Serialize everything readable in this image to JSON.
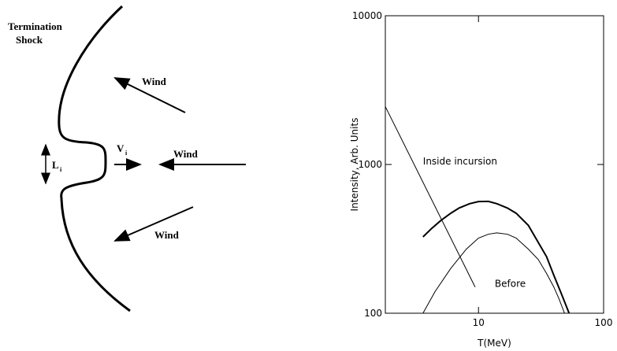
{
  "diagram": {
    "labels": {
      "shock_line1": "Termination",
      "shock_line2": "Shock",
      "wind_top": "Wind",
      "wind_middle": "Wind",
      "wind_bottom": "Wind",
      "v": "V",
      "v_sub": "i",
      "l": "L",
      "l_sub": "i"
    }
  },
  "chart_data": {
    "type": "line",
    "xlabel": "T(MeV)",
    "ylabel": "Intensity, Arb. Units",
    "xlim": [
      1.8,
      100
    ],
    "ylim": [
      100,
      10000
    ],
    "xticks": [
      10,
      100
    ],
    "yticks": [
      100,
      1000,
      10000
    ],
    "xscale": "log",
    "yscale": "log",
    "annotations": [
      {
        "text": "Inside incursion",
        "x": 3.6,
        "y": 1000
      },
      {
        "text": "Before",
        "x": 13.5,
        "y": 150
      }
    ],
    "series": [
      {
        "color": "#000000",
        "linewidth": 1,
        "x": [
          1.8,
          9.4
        ],
        "values": [
          2450,
          150
        ]
      },
      {
        "color": "#000000",
        "linewidth": 2,
        "x": [
          3.6,
          4.2,
          5,
          6,
          7,
          8.5,
          10,
          12,
          14,
          17,
          20,
          25,
          30,
          35,
          40,
          46,
          53
        ],
        "values": [
          326,
          370,
          420,
          470,
          510,
          545,
          563,
          565,
          545,
          510,
          470,
          390,
          300,
          240,
          180,
          135,
          100
        ]
      },
      {
        "color": "#000000",
        "linewidth": 1,
        "x": [
          3.6,
          4.5,
          6,
          8,
          10,
          12,
          14,
          17,
          20,
          25,
          30,
          35,
          40,
          44,
          48.7
        ],
        "values": [
          100,
          140,
          200,
          270,
          320,
          340,
          347,
          340,
          320,
          270,
          230,
          185,
          150,
          125,
          100
        ]
      }
    ]
  }
}
